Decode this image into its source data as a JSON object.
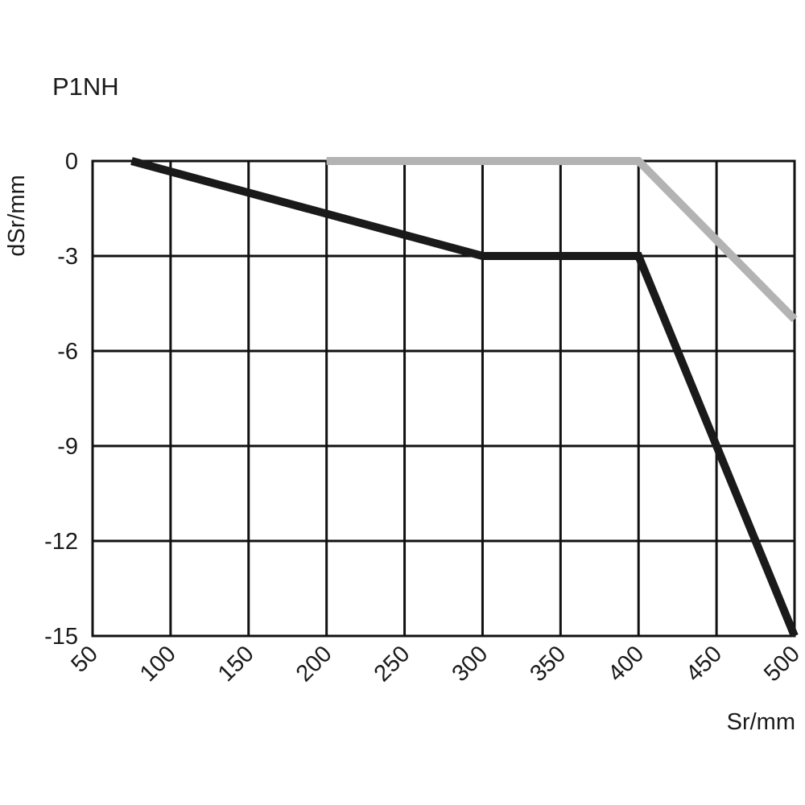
{
  "chart_data": {
    "type": "line",
    "title": "P1NH",
    "xlabel": "Sr/mm",
    "ylabel": "dSr/mm",
    "xlim": [
      50,
      500
    ],
    "ylim": [
      -15,
      0
    ],
    "x_ticks": [
      "50",
      "100",
      "150",
      "200",
      "250",
      "300",
      "350",
      "400",
      "450",
      "500"
    ],
    "y_ticks": [
      "0",
      "-3",
      "-6",
      "-9",
      "-12",
      "-15"
    ],
    "grid": true,
    "series": [
      {
        "color": "#1a1a1a",
        "points": [
          [
            75,
            0
          ],
          [
            300,
            -3
          ],
          [
            400,
            -3
          ],
          [
            500,
            -15
          ]
        ]
      },
      {
        "color": "#b3b3b3",
        "points": [
          [
            200,
            0
          ],
          [
            400,
            0
          ],
          [
            500,
            -5
          ]
        ]
      }
    ]
  }
}
